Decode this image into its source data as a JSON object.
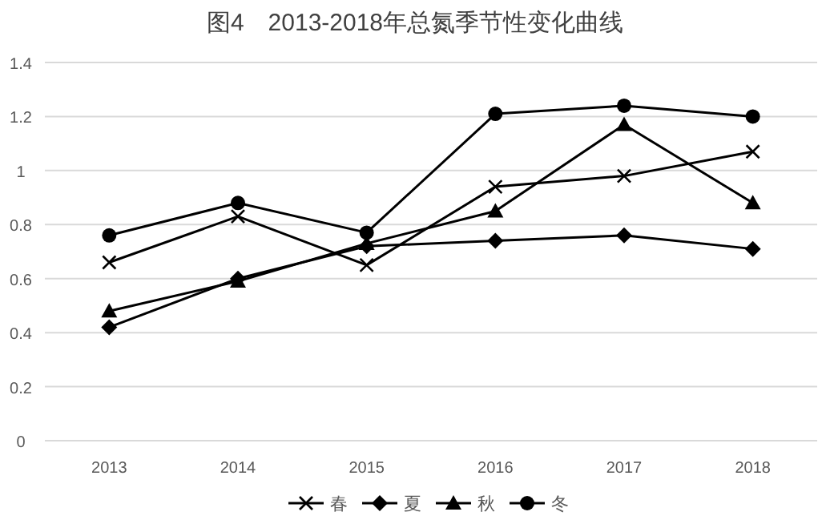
{
  "chart_data": {
    "type": "line",
    "title": "图4　2013-2018年总氮季节性变化曲线",
    "categories": [
      "2013",
      "2014",
      "2015",
      "2016",
      "2017",
      "2018"
    ],
    "series": [
      {
        "name": "春",
        "color": "#000000",
        "marker": "cross",
        "values": [
          0.66,
          0.83,
          0.65,
          0.94,
          0.98,
          1.07
        ]
      },
      {
        "name": "夏",
        "color": "#000000",
        "marker": "diamond",
        "values": [
          0.42,
          0.6,
          0.72,
          0.74,
          0.76,
          0.71
        ]
      },
      {
        "name": "秋",
        "color": "#000000",
        "marker": "triangle",
        "values": [
          0.48,
          0.59,
          0.73,
          0.85,
          1.17,
          0.88
        ]
      },
      {
        "name": "冬",
        "color": "#000000",
        "marker": "circle",
        "values": [
          0.76,
          0.88,
          0.77,
          1.21,
          1.24,
          1.2
        ]
      }
    ],
    "ylim": [
      0,
      1.4
    ],
    "yticks": [
      0,
      0.2,
      0.4,
      0.6,
      0.8,
      1,
      1.2,
      1.4
    ],
    "grid": "y",
    "legend": "bottom",
    "line_style": "solid"
  }
}
